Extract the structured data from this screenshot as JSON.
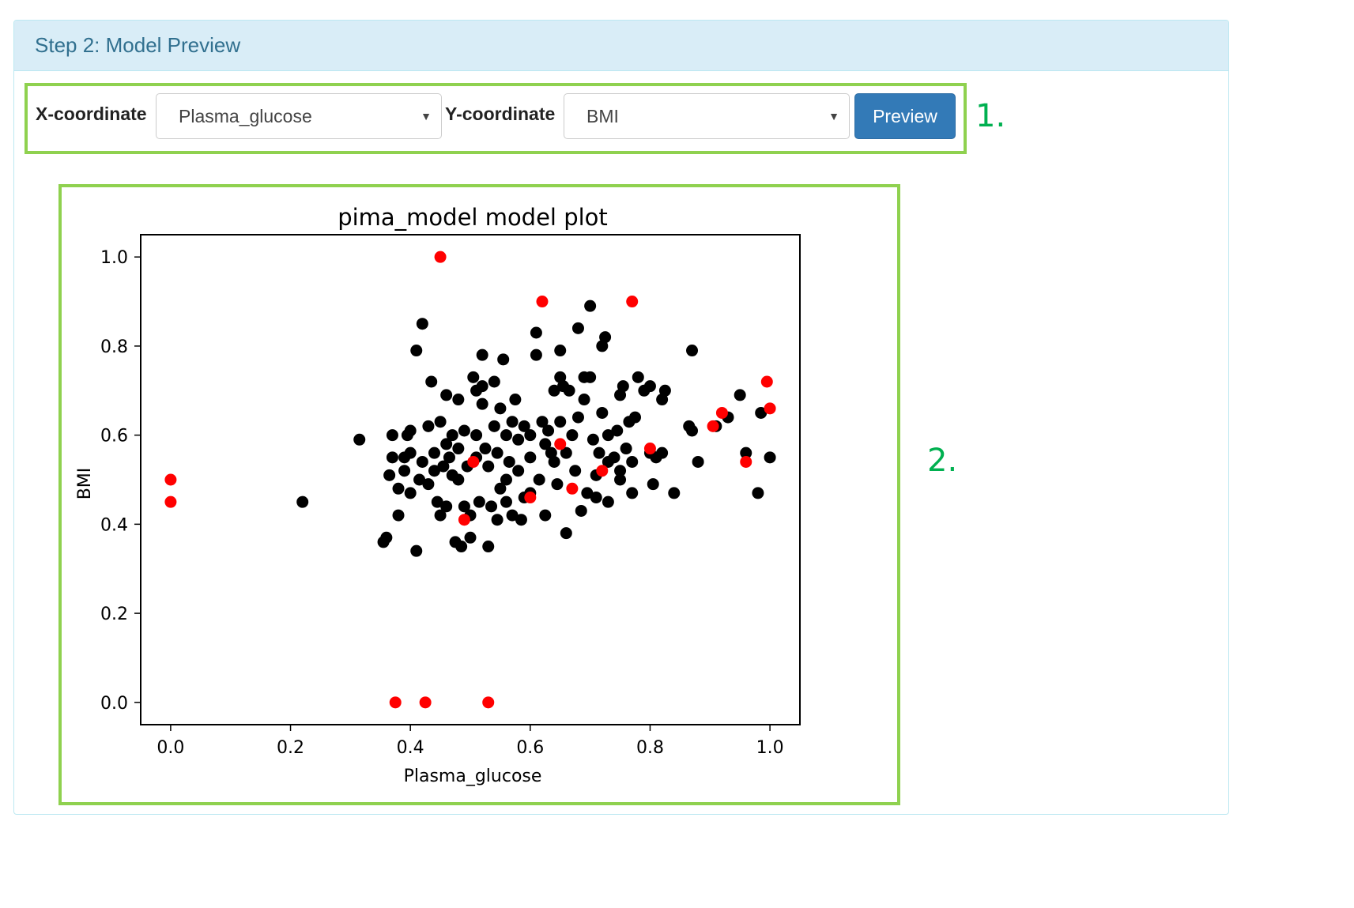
{
  "panel": {
    "title": "Step 2: Model Preview"
  },
  "controls": {
    "x_label": "X-coordinate",
    "x_value": "Plasma_glucose",
    "y_label": "Y-coordinate",
    "y_value": "BMI",
    "preview_label": "Preview"
  },
  "callouts": {
    "one": "1.",
    "two": "2."
  },
  "icons": {
    "caret": "caret-down-icon"
  },
  "colors": {
    "accent": "#337ab7",
    "callout": "#00b050",
    "box": "#8fd14f",
    "heading_bg": "#d9edf7",
    "heading_text": "#31708f"
  },
  "chart_data": {
    "type": "scatter",
    "title": "pima_model model plot",
    "xlabel": "Plasma_glucose",
    "ylabel": "BMI",
    "xlim": [
      -0.05,
      1.05
    ],
    "ylim": [
      -0.05,
      1.05
    ],
    "xticks": [
      "0.0",
      "0.2",
      "0.4",
      "0.6",
      "0.8",
      "1.0"
    ],
    "yticks": [
      "0.0",
      "0.2",
      "0.4",
      "0.6",
      "0.8",
      "1.0"
    ],
    "grid": false,
    "series": [
      {
        "color": "#000000",
        "points": [
          [
            0.22,
            0.45
          ],
          [
            0.315,
            0.59
          ],
          [
            0.355,
            0.36
          ],
          [
            0.36,
            0.37
          ],
          [
            0.365,
            0.51
          ],
          [
            0.37,
            0.55
          ],
          [
            0.37,
            0.6
          ],
          [
            0.38,
            0.48
          ],
          [
            0.38,
            0.42
          ],
          [
            0.39,
            0.55
          ],
          [
            0.39,
            0.52
          ],
          [
            0.395,
            0.6
          ],
          [
            0.4,
            0.56
          ],
          [
            0.4,
            0.47
          ],
          [
            0.4,
            0.61
          ],
          [
            0.41,
            0.79
          ],
          [
            0.41,
            0.34
          ],
          [
            0.415,
            0.5
          ],
          [
            0.42,
            0.85
          ],
          [
            0.42,
            0.54
          ],
          [
            0.43,
            0.62
          ],
          [
            0.43,
            0.49
          ],
          [
            0.435,
            0.72
          ],
          [
            0.44,
            0.56
          ],
          [
            0.44,
            0.52
          ],
          [
            0.445,
            0.45
          ],
          [
            0.45,
            0.63
          ],
          [
            0.45,
            0.42
          ],
          [
            0.455,
            0.53
          ],
          [
            0.46,
            0.58
          ],
          [
            0.46,
            0.44
          ],
          [
            0.46,
            0.69
          ],
          [
            0.465,
            0.55
          ],
          [
            0.47,
            0.51
          ],
          [
            0.47,
            0.6
          ],
          [
            0.475,
            0.36
          ],
          [
            0.48,
            0.68
          ],
          [
            0.48,
            0.57
          ],
          [
            0.48,
            0.5
          ],
          [
            0.485,
            0.35
          ],
          [
            0.49,
            0.61
          ],
          [
            0.49,
            0.44
          ],
          [
            0.495,
            0.53
          ],
          [
            0.5,
            0.42
          ],
          [
            0.5,
            0.37
          ],
          [
            0.505,
            0.73
          ],
          [
            0.51,
            0.7
          ],
          [
            0.51,
            0.6
          ],
          [
            0.51,
            0.55
          ],
          [
            0.515,
            0.45
          ],
          [
            0.52,
            0.67
          ],
          [
            0.52,
            0.71
          ],
          [
            0.52,
            0.78
          ],
          [
            0.525,
            0.57
          ],
          [
            0.53,
            0.35
          ],
          [
            0.53,
            0.53
          ],
          [
            0.535,
            0.44
          ],
          [
            0.54,
            0.72
          ],
          [
            0.54,
            0.62
          ],
          [
            0.545,
            0.41
          ],
          [
            0.545,
            0.56
          ],
          [
            0.55,
            0.48
          ],
          [
            0.55,
            0.66
          ],
          [
            0.555,
            0.77
          ],
          [
            0.56,
            0.6
          ],
          [
            0.56,
            0.5
          ],
          [
            0.56,
            0.45
          ],
          [
            0.565,
            0.54
          ],
          [
            0.57,
            0.63
          ],
          [
            0.57,
            0.42
          ],
          [
            0.575,
            0.68
          ],
          [
            0.58,
            0.59
          ],
          [
            0.58,
            0.52
          ],
          [
            0.585,
            0.41
          ],
          [
            0.59,
            0.62
          ],
          [
            0.59,
            0.46
          ],
          [
            0.6,
            0.6
          ],
          [
            0.6,
            0.55
          ],
          [
            0.6,
            0.47
          ],
          [
            0.61,
            0.83
          ],
          [
            0.61,
            0.78
          ],
          [
            0.615,
            0.5
          ],
          [
            0.62,
            0.63
          ],
          [
            0.625,
            0.58
          ],
          [
            0.625,
            0.42
          ],
          [
            0.63,
            0.61
          ],
          [
            0.635,
            0.56
          ],
          [
            0.64,
            0.7
          ],
          [
            0.64,
            0.54
          ],
          [
            0.645,
            0.49
          ],
          [
            0.65,
            0.79
          ],
          [
            0.65,
            0.73
          ],
          [
            0.65,
            0.63
          ],
          [
            0.655,
            0.71
          ],
          [
            0.66,
            0.38
          ],
          [
            0.66,
            0.56
          ],
          [
            0.665,
            0.7
          ],
          [
            0.67,
            0.6
          ],
          [
            0.675,
            0.52
          ],
          [
            0.68,
            0.84
          ],
          [
            0.68,
            0.64
          ],
          [
            0.685,
            0.43
          ],
          [
            0.69,
            0.73
          ],
          [
            0.69,
            0.68
          ],
          [
            0.695,
            0.47
          ],
          [
            0.7,
            0.89
          ],
          [
            0.7,
            0.73
          ],
          [
            0.705,
            0.59
          ],
          [
            0.71,
            0.51
          ],
          [
            0.71,
            0.46
          ],
          [
            0.715,
            0.56
          ],
          [
            0.72,
            0.8
          ],
          [
            0.72,
            0.65
          ],
          [
            0.725,
            0.82
          ],
          [
            0.73,
            0.6
          ],
          [
            0.73,
            0.54
          ],
          [
            0.73,
            0.45
          ],
          [
            0.74,
            0.55
          ],
          [
            0.745,
            0.61
          ],
          [
            0.75,
            0.69
          ],
          [
            0.75,
            0.5
          ],
          [
            0.75,
            0.52
          ],
          [
            0.755,
            0.71
          ],
          [
            0.76,
            0.57
          ],
          [
            0.765,
            0.63
          ],
          [
            0.77,
            0.54
          ],
          [
            0.77,
            0.47
          ],
          [
            0.775,
            0.64
          ],
          [
            0.78,
            0.73
          ],
          [
            0.79,
            0.7
          ],
          [
            0.8,
            0.71
          ],
          [
            0.8,
            0.56
          ],
          [
            0.805,
            0.49
          ],
          [
            0.81,
            0.55
          ],
          [
            0.82,
            0.56
          ],
          [
            0.82,
            0.68
          ],
          [
            0.825,
            0.7
          ],
          [
            0.84,
            0.47
          ],
          [
            0.865,
            0.62
          ],
          [
            0.87,
            0.79
          ],
          [
            0.87,
            0.61
          ],
          [
            0.88,
            0.54
          ],
          [
            0.91,
            0.62
          ],
          [
            0.93,
            0.64
          ],
          [
            0.95,
            0.69
          ],
          [
            0.96,
            0.56
          ],
          [
            0.98,
            0.47
          ],
          [
            0.985,
            0.65
          ],
          [
            1.0,
            0.55
          ]
        ]
      },
      {
        "color": "#ff0000",
        "points": [
          [
            0.0,
            0.5
          ],
          [
            0.0,
            0.45
          ],
          [
            0.375,
            0.0
          ],
          [
            0.425,
            0.0
          ],
          [
            0.45,
            1.0
          ],
          [
            0.49,
            0.41
          ],
          [
            0.505,
            0.54
          ],
          [
            0.53,
            0.0
          ],
          [
            0.6,
            0.46
          ],
          [
            0.62,
            0.9
          ],
          [
            0.65,
            0.58
          ],
          [
            0.67,
            0.48
          ],
          [
            0.72,
            0.52
          ],
          [
            0.77,
            0.9
          ],
          [
            0.8,
            0.57
          ],
          [
            0.905,
            0.62
          ],
          [
            0.92,
            0.65
          ],
          [
            0.96,
            0.54
          ],
          [
            0.995,
            0.72
          ],
          [
            1.0,
            0.66
          ]
        ]
      }
    ]
  }
}
